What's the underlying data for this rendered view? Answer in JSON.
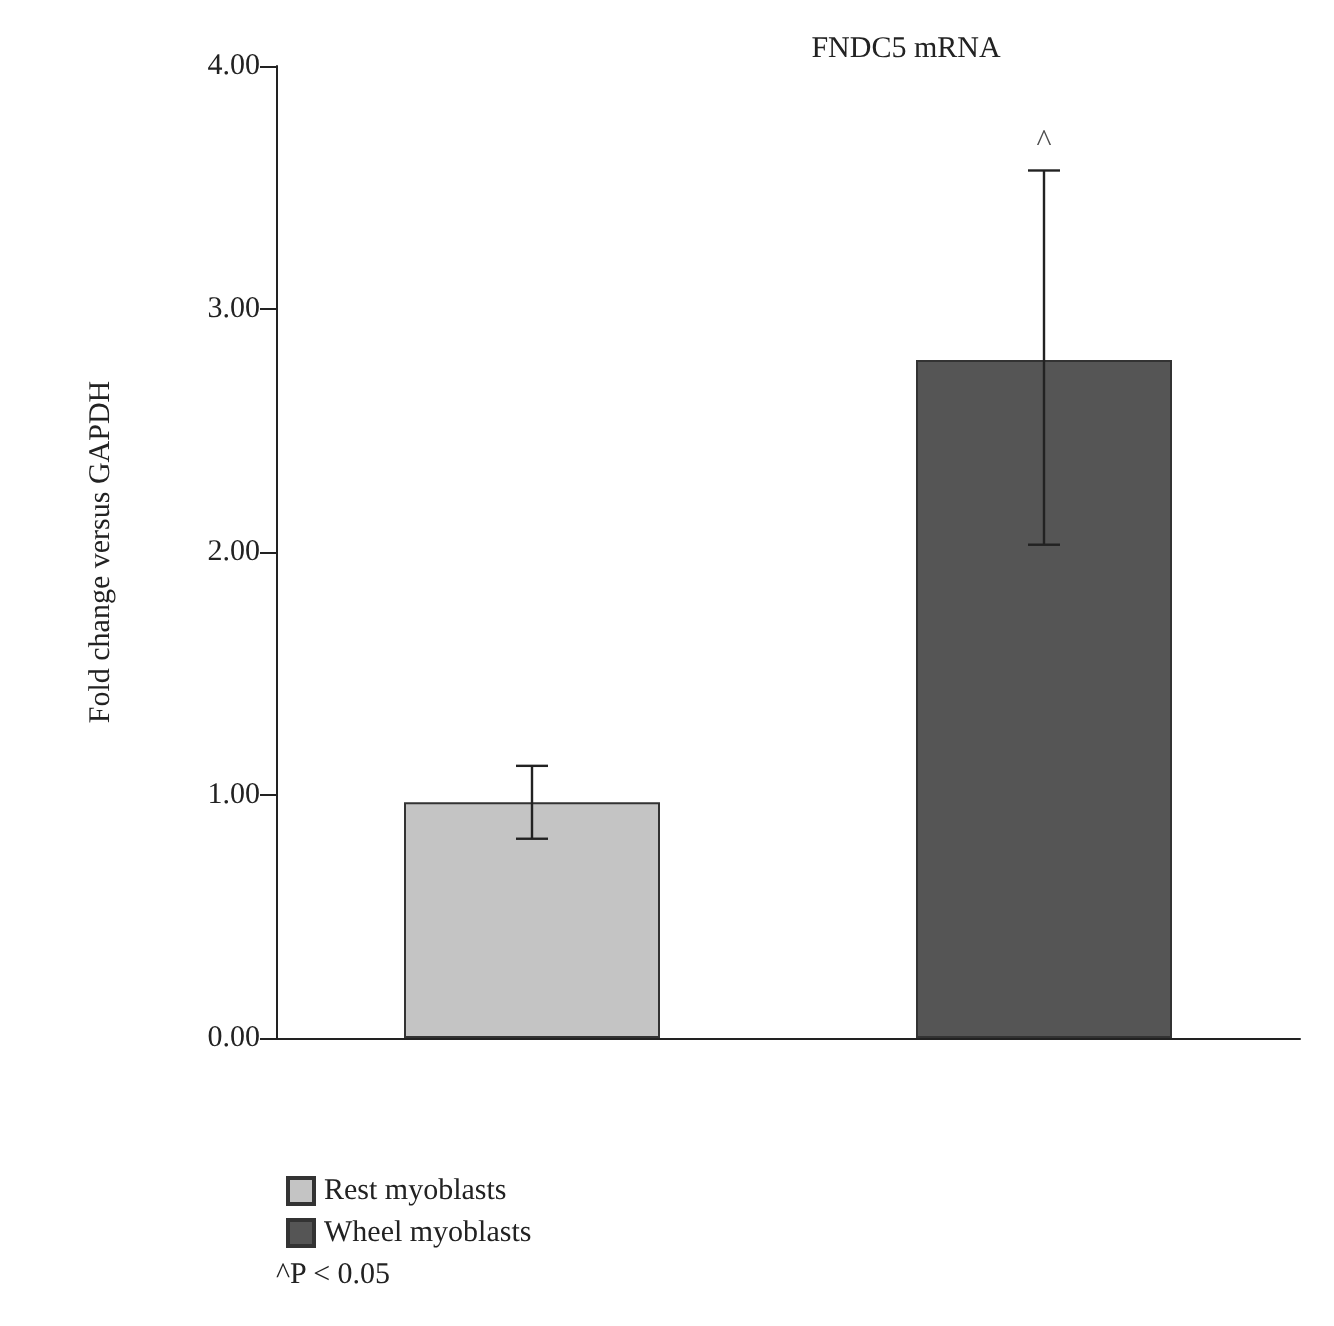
{
  "chart_data": {
    "type": "bar",
    "title": "FNDC5 mRNA",
    "ylabel": "Fold change versus GAPDH",
    "categories": [
      null,
      null
    ],
    "series": [
      {
        "name": "Rest myoblasts",
        "color": "#c4c4c4",
        "values": [
          0.97,
          null
        ],
        "errors": [
          [
            0.82,
            1.12
          ],
          null
        ]
      },
      {
        "name": "Wheel myoblasts",
        "color": "#555555",
        "values": [
          null,
          2.79
        ],
        "errors": [
          null,
          [
            2.03,
            3.57
          ]
        ]
      }
    ],
    "ylim": [
      0,
      4
    ],
    "yticks": [
      {
        "value": 0,
        "label": "0.00"
      },
      {
        "value": 1,
        "label": "1.00"
      },
      {
        "value": 2,
        "label": "2.00"
      },
      {
        "value": 3,
        "label": "3.00"
      },
      {
        "value": 4,
        "label": "4.00"
      }
    ],
    "annotations": [
      {
        "text": "^",
        "y": 3.57
      },
      "^P < 0.05"
    ],
    "grid": false,
    "legend": "bottom left"
  }
}
